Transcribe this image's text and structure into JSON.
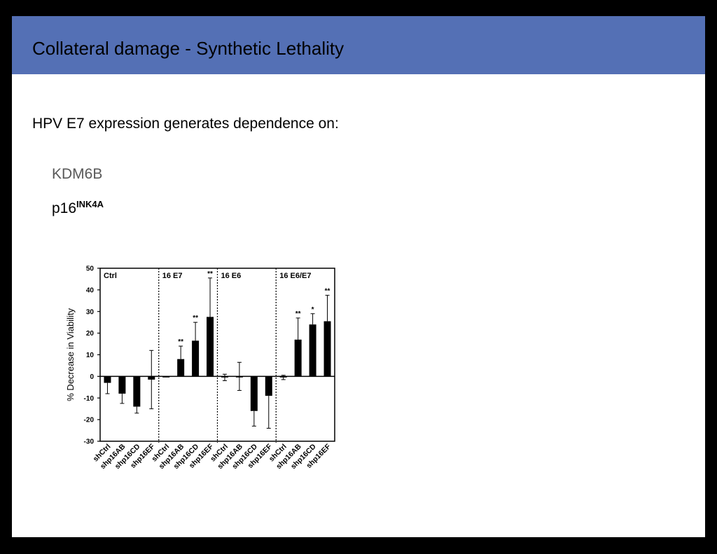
{
  "slide": {
    "title": "Collateral damage - Synthetic Lethality",
    "subtitle": "HPV E7 expression generates dependence on:",
    "item1": "KDM6B",
    "item2_base": "p16",
    "item2_sup": "INK4A"
  },
  "colors": {
    "title_bar": "#5470B5",
    "bars": "#000000",
    "muted_text": "#595959"
  },
  "chart_data": {
    "type": "bar",
    "ylabel": "% Decrease in Viability",
    "ylim": [
      -30,
      50
    ],
    "yticks": [
      -30,
      -20,
      -10,
      0,
      10,
      20,
      30,
      40,
      50
    ],
    "panel_separators": "dotted",
    "panels": [
      {
        "name": "Ctrl",
        "categories": [
          "shCtrl",
          "shp16AB",
          "shp16CD",
          "shp16EF"
        ],
        "values": [
          -3,
          -8,
          -14,
          -1.5
        ],
        "errors": [
          5,
          4.5,
          3,
          13.5
        ],
        "significance": [
          "",
          "",
          "",
          ""
        ]
      },
      {
        "name": "16 E7",
        "categories": [
          "shCtrl",
          "shp16AB",
          "shp16CD",
          "shp16EF"
        ],
        "values": [
          0,
          8,
          16.5,
          27.5
        ],
        "errors": [
          0,
          6,
          8.5,
          18
        ],
        "significance": [
          "",
          "**",
          "**",
          "**"
        ]
      },
      {
        "name": "16 E6",
        "categories": [
          "shCtrl",
          "shp16AB",
          "shp16CD",
          "shp16EF"
        ],
        "values": [
          -0.5,
          0,
          -16,
          -9
        ],
        "errors": [
          1.5,
          6.5,
          7,
          15
        ],
        "significance": [
          "",
          "",
          "",
          ""
        ]
      },
      {
        "name": "16 E6/E7",
        "categories": [
          "shCtrl",
          "shp16AB",
          "shp16CD",
          "shp16EF"
        ],
        "values": [
          -0.5,
          17,
          24,
          25.5
        ],
        "errors": [
          1,
          10,
          5,
          12
        ],
        "significance": [
          "",
          "**",
          "*",
          "**"
        ]
      }
    ]
  }
}
